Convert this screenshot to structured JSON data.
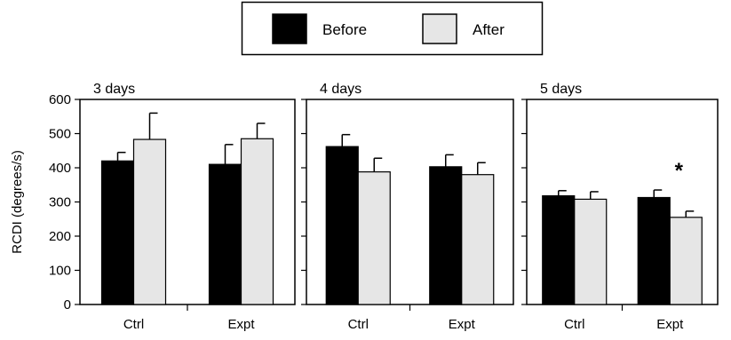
{
  "chart_data": {
    "type": "bar",
    "ylabel": "RCDI (degrees/s)",
    "ylim": [
      0,
      600
    ],
    "yticks": [
      0,
      100,
      200,
      300,
      400,
      500,
      600
    ],
    "categories": [
      "Ctrl",
      "Expt"
    ],
    "legend": {
      "placement": "top-center",
      "entries": [
        {
          "name": "Before",
          "color": "#000000"
        },
        {
          "name": "After",
          "color": "#e6e6e6"
        }
      ]
    },
    "error_bars": "upper",
    "panels": [
      {
        "title": "3 days",
        "series": [
          {
            "name": "Before",
            "values": [
              420,
              410
            ],
            "errors": [
              25,
              58
            ]
          },
          {
            "name": "After",
            "values": [
              483,
              485
            ],
            "errors": [
              77,
              45
            ]
          }
        ],
        "annotations": []
      },
      {
        "title": "4 days",
        "series": [
          {
            "name": "Before",
            "values": [
              462,
              403
            ],
            "errors": [
              35,
              35
            ]
          },
          {
            "name": "After",
            "values": [
              388,
              380
            ],
            "errors": [
              40,
              35
            ]
          }
        ],
        "annotations": []
      },
      {
        "title": "5 days",
        "series": [
          {
            "name": "Before",
            "values": [
              318,
              313
            ],
            "errors": [
              15,
              22
            ]
          },
          {
            "name": "After",
            "values": [
              308,
              255
            ],
            "errors": [
              22,
              18
            ]
          }
        ],
        "annotations": [
          {
            "category": "Expt",
            "series": "After",
            "text": "*"
          }
        ]
      }
    ]
  }
}
